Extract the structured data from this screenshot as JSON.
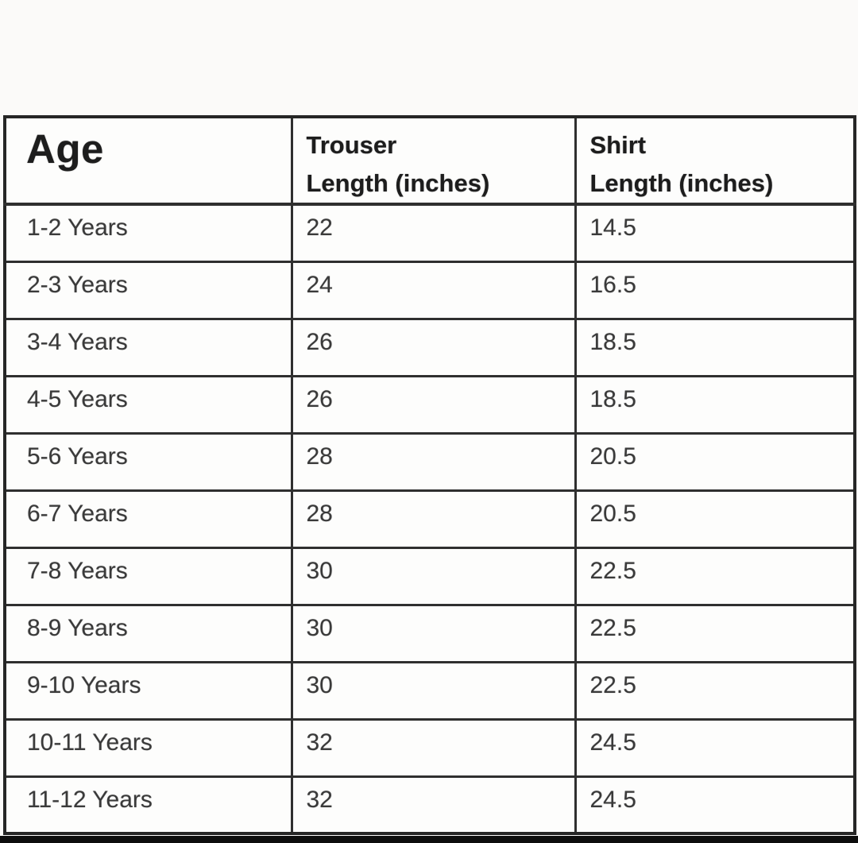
{
  "chart_data": {
    "type": "table",
    "columns": [
      "Age",
      "Trouser\nLength (inches)",
      "Shirt\nLength (inches)"
    ],
    "rows": [
      [
        "1-2 Years",
        22,
        14.5
      ],
      [
        "2-3 Years",
        24,
        16.5
      ],
      [
        "3-4 Years",
        26,
        18.5
      ],
      [
        "4-5 Years",
        26,
        18.5
      ],
      [
        "5-6 Years",
        28,
        20.5
      ],
      [
        "6-7 Years",
        28,
        20.5
      ],
      [
        "7-8 Years",
        30,
        22.5
      ],
      [
        "8-9 Years",
        30,
        22.5
      ],
      [
        "9-10 Years",
        30,
        22.5
      ],
      [
        "10-11 Years",
        32,
        24.5
      ],
      [
        "11-12 Years",
        32,
        24.5
      ]
    ],
    "layout_hints": {
      "grid": "on",
      "header_bold": true,
      "text_align": "left"
    }
  },
  "colors": {
    "background": "#fbfaf9",
    "table_border": "#2f2f2f",
    "header_text": "#1d1d1d",
    "body_text": "#3a3a3a",
    "bottom_bar": "#0d0d0d"
  }
}
